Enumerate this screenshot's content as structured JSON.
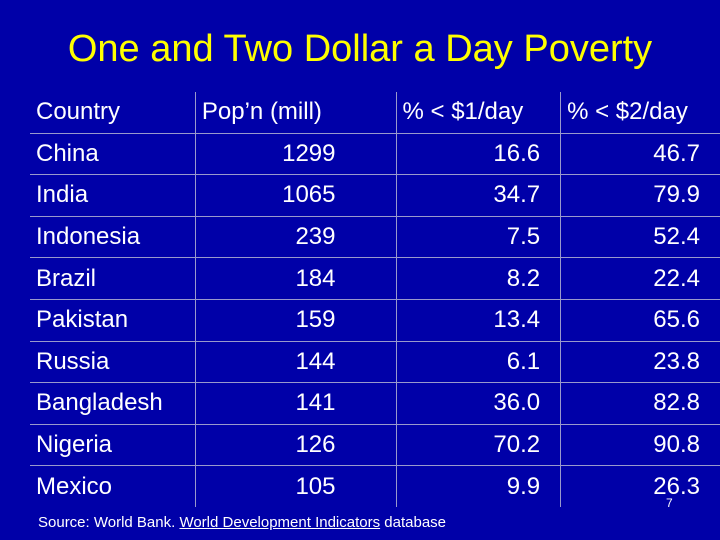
{
  "title": "One and Two Dollar a Day Poverty",
  "table": {
    "headers": [
      "Country",
      "Pop’n (mill)",
      "% < $1/day",
      "% < $2/day"
    ],
    "rows": [
      [
        "China",
        "1299",
        "16.6",
        "46.7"
      ],
      [
        "India",
        "1065",
        "34.7",
        "79.9"
      ],
      [
        "Indonesia",
        "239",
        "7.5",
        "52.4"
      ],
      [
        "Brazil",
        "184",
        "8.2",
        "22.4"
      ],
      [
        "Pakistan",
        "159",
        "13.4",
        "65.6"
      ],
      [
        "Russia",
        "144",
        "6.1",
        "23.8"
      ],
      [
        "Bangladesh",
        "141",
        "36.0",
        "82.8"
      ],
      [
        "Nigeria",
        "126",
        "70.2",
        "90.8"
      ],
      [
        "Mexico",
        "105",
        "9.9",
        "26.3"
      ]
    ]
  },
  "source": {
    "prefix": "Source: World Bank. ",
    "link": "World Development Indicators",
    "suffix": " database"
  },
  "page_number": "7",
  "colors": {
    "background": "#0000a8",
    "title": "#ffff00",
    "text": "#ffffff"
  }
}
